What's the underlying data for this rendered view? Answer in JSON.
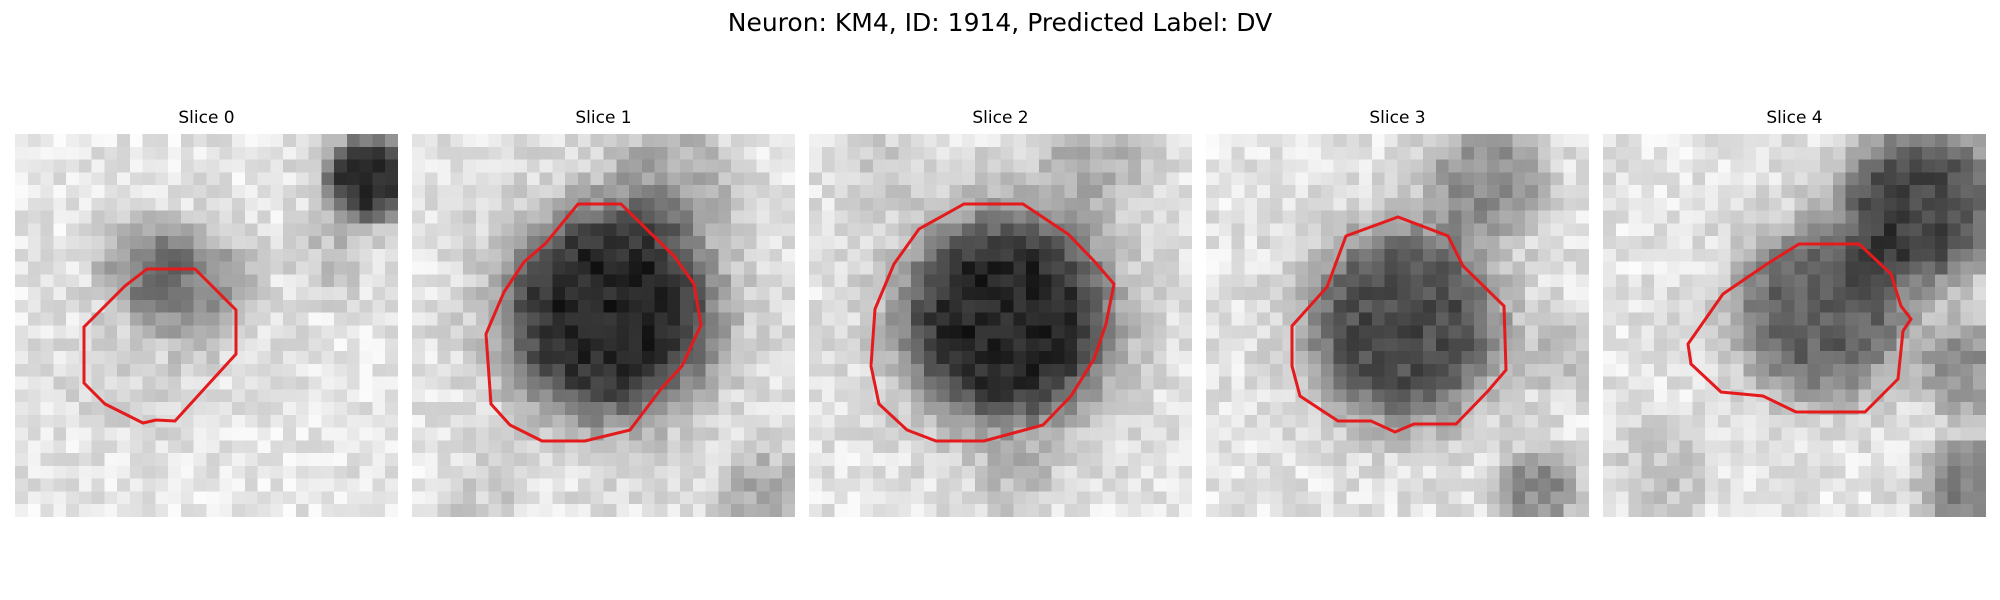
{
  "figure": {
    "title": "Neuron: KM4, ID: 1914, Predicted Label: DV"
  },
  "outline_color": "#e41a1c",
  "panels": [
    {
      "title": "Slice 0"
    },
    {
      "title": "Slice 1"
    },
    {
      "title": "Slice 2"
    },
    {
      "title": "Slice 3"
    },
    {
      "title": "Slice 4"
    }
  ]
}
